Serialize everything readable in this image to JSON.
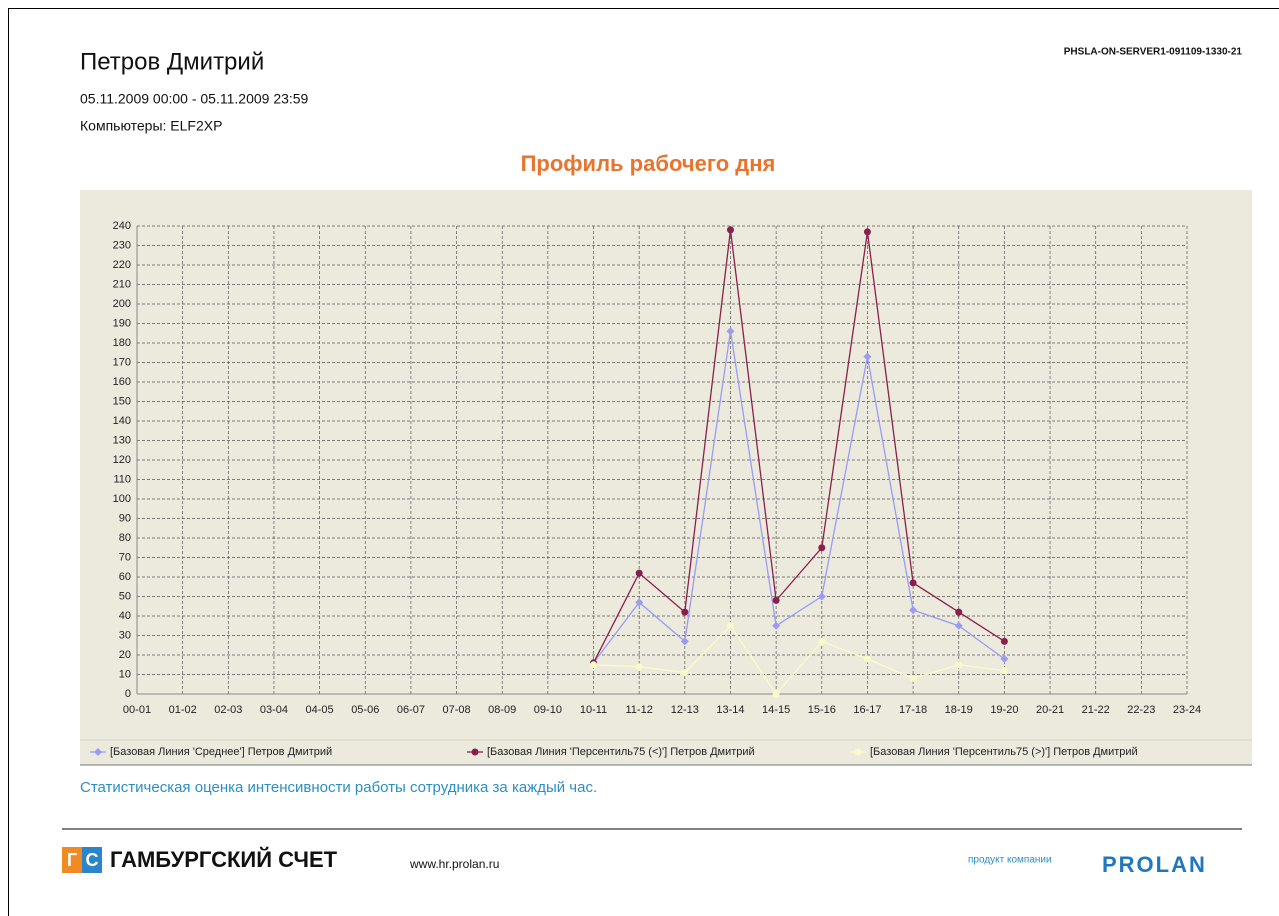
{
  "header": {
    "name": "Петров Дмитрий",
    "period": "05.11.2009 00:00 - 05.11.2009 23:59",
    "computers": "Компьютеры: ELF2XP",
    "report_id": "PHSLA-ON-SERVER1-091109-1330-21"
  },
  "chart_data": {
    "type": "line",
    "title": "Профиль рабочего дня",
    "categories": [
      "00-01",
      "01-02",
      "02-03",
      "03-04",
      "04-05",
      "05-06",
      "06-07",
      "07-08",
      "08-09",
      "09-10",
      "10-11",
      "11-12",
      "12-13",
      "13-14",
      "14-15",
      "15-16",
      "16-17",
      "17-18",
      "18-19",
      "19-20",
      "20-21",
      "21-22",
      "22-23",
      "23-24"
    ],
    "series": [
      {
        "name": "[Базовая Линия 'Среднее'] Петров Дмитрий",
        "color": "#9b9bf5",
        "marker": "diamond",
        "values": [
          null,
          null,
          null,
          null,
          null,
          null,
          null,
          null,
          null,
          null,
          16,
          47,
          27,
          186,
          35,
          50,
          173,
          43,
          35,
          18,
          null,
          null,
          null,
          null
        ]
      },
      {
        "name": "[Базовая Линия 'Персентиль75 (<)'] Петров Дмитрий",
        "color": "#8a1f4c",
        "marker": "circle",
        "values": [
          null,
          null,
          null,
          null,
          null,
          null,
          null,
          null,
          null,
          null,
          16,
          62,
          42,
          238,
          48,
          75,
          237,
          57,
          42,
          27,
          null,
          null,
          null,
          null
        ]
      },
      {
        "name": "[Базовая Линия 'Персентиль75 (>)'] Петров Дмитрий",
        "color": "#fbfbc8",
        "marker": "circle",
        "values": [
          null,
          null,
          null,
          null,
          null,
          null,
          null,
          null,
          null,
          null,
          15,
          14,
          11,
          35,
          0,
          27,
          18,
          8,
          15,
          12,
          null,
          null,
          null,
          null
        ]
      }
    ],
    "ylim": [
      0,
      240
    ],
    "yticks": [
      0,
      10,
      20,
      30,
      40,
      50,
      60,
      70,
      80,
      90,
      100,
      110,
      120,
      130,
      140,
      150,
      160,
      170,
      180,
      190,
      200,
      210,
      220,
      230,
      240
    ],
    "grid": true,
    "legend": "bottom"
  },
  "caption": "Статистическая оценка интенсивности работы сотрудника за каждый час.",
  "footer": {
    "logo_mark": [
      "Г",
      "С"
    ],
    "brand": "ГАМБУРГСКИЙ СЧЕТ",
    "url": "www.hr.prolan.ru",
    "vendor_note": "продукт компании",
    "vendor": "PROLAN"
  }
}
